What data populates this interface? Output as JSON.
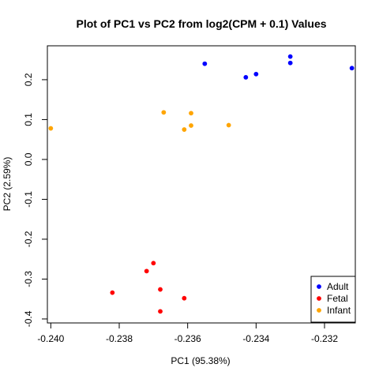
{
  "chart_data": {
    "type": "scatter",
    "title": "Plot of PC1 vs PC2 from log2(CPM + 0.1) Values",
    "xlabel": "PC1 (95.38%)",
    "ylabel": "PC2 (2.59%)",
    "xlim": [
      -0.2401,
      -0.2311
    ],
    "ylim": [
      -0.41,
      0.285
    ],
    "xticks": [
      -0.24,
      -0.238,
      -0.236,
      -0.234,
      -0.232
    ],
    "xtick_labels": [
      "-0.240",
      "-0.238",
      "-0.236",
      "-0.234",
      "-0.232"
    ],
    "yticks": [
      -0.4,
      -0.3,
      -0.2,
      -0.1,
      0.0,
      0.1,
      0.2
    ],
    "ytick_labels": [
      "-0.4",
      "-0.3",
      "-0.2",
      "-0.1",
      "0.0",
      "0.1",
      "0.2"
    ],
    "grid": false,
    "legend_position": "bottom-right",
    "series": [
      {
        "name": "Adult",
        "color": "#0000ff",
        "points": [
          [
            -0.2355,
            0.24
          ],
          [
            -0.2343,
            0.206
          ],
          [
            -0.234,
            0.214
          ],
          [
            -0.233,
            0.258
          ],
          [
            -0.233,
            0.242
          ],
          [
            -0.2312,
            0.229
          ]
        ]
      },
      {
        "name": "Fetal",
        "color": "#ff0000",
        "points": [
          [
            -0.2382,
            -0.334
          ],
          [
            -0.2372,
            -0.28
          ],
          [
            -0.237,
            -0.26
          ],
          [
            -0.2368,
            -0.326
          ],
          [
            -0.2368,
            -0.381
          ],
          [
            -0.2361,
            -0.348
          ]
        ]
      },
      {
        "name": "Infant",
        "color": "#ffa500",
        "points": [
          [
            -0.24,
            0.078
          ],
          [
            -0.2367,
            0.118
          ],
          [
            -0.2361,
            0.075
          ],
          [
            -0.2359,
            0.116
          ],
          [
            -0.2359,
            0.085
          ],
          [
            -0.2348,
            0.086
          ]
        ]
      }
    ]
  }
}
